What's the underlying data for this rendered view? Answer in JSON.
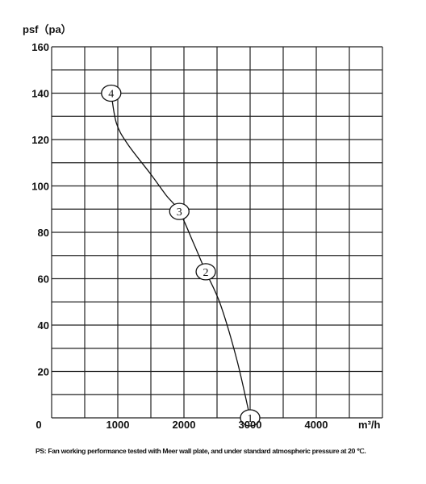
{
  "chart_data": {
    "type": "line",
    "ylabel": "psf（pa）",
    "xunit": "m³/h",
    "xlim": [
      0,
      5000
    ],
    "ylim": [
      0,
      160
    ],
    "x_ticks": [
      {
        "value": 0,
        "label": "0"
      },
      {
        "value": 1000,
        "label": "1000"
      },
      {
        "value": 2000,
        "label": "2000"
      },
      {
        "value": 3000,
        "label": "3000"
      },
      {
        "value": 4000,
        "label": "4000"
      }
    ],
    "y_ticks": [
      {
        "value": 20,
        "label": "20"
      },
      {
        "value": 40,
        "label": "40"
      },
      {
        "value": 60,
        "label": "60"
      },
      {
        "value": 80,
        "label": "80"
      },
      {
        "value": 100,
        "label": "100"
      },
      {
        "value": 120,
        "label": "120"
      },
      {
        "value": 140,
        "label": "140"
      },
      {
        "value": 160,
        "label": "160"
      }
    ],
    "grid_x_step": 500,
    "grid_y_step": 10,
    "grid": true,
    "series": [
      {
        "values": [
          {
            "x": 900,
            "y": 140
          },
          {
            "x": 980,
            "y": 127
          },
          {
            "x": 1150,
            "y": 118
          },
          {
            "x": 1500,
            "y": 105
          },
          {
            "x": 1730,
            "y": 96
          },
          {
            "x": 1930,
            "y": 89
          },
          {
            "x": 2150,
            "y": 75
          },
          {
            "x": 2330,
            "y": 63
          },
          {
            "x": 2550,
            "y": 49
          },
          {
            "x": 2800,
            "y": 25
          },
          {
            "x": 3000,
            "y": 0
          }
        ]
      }
    ],
    "markers": [
      {
        "label": "1",
        "x": 3000,
        "y": 0
      },
      {
        "label": "2",
        "x": 2330,
        "y": 63
      },
      {
        "label": "3",
        "x": 1930,
        "y": 89
      },
      {
        "label": "4",
        "x": 900,
        "y": 140
      }
    ],
    "note": "PS: Fan working performance tested with Meer wall plate, and under standard atmospheric pressure at 20 ℃."
  }
}
